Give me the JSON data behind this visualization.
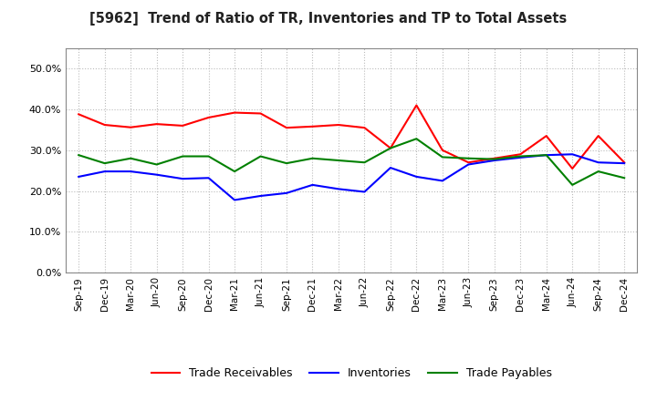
{
  "title": "[5962]  Trend of Ratio of TR, Inventories and TP to Total Assets",
  "x_labels": [
    "Sep-19",
    "Dec-19",
    "Mar-20",
    "Jun-20",
    "Sep-20",
    "Dec-20",
    "Mar-21",
    "Jun-21",
    "Sep-21",
    "Dec-21",
    "Mar-22",
    "Jun-22",
    "Sep-22",
    "Dec-22",
    "Mar-23",
    "Jun-23",
    "Sep-23",
    "Dec-23",
    "Mar-24",
    "Jun-24",
    "Sep-24",
    "Dec-24"
  ],
  "trade_receivables": [
    0.388,
    0.362,
    0.356,
    0.364,
    0.36,
    0.38,
    0.392,
    0.39,
    0.355,
    0.358,
    0.362,
    0.355,
    0.305,
    0.41,
    0.3,
    0.27,
    0.28,
    0.29,
    0.335,
    0.255,
    0.335,
    0.27
  ],
  "inventories": [
    0.235,
    0.248,
    0.248,
    0.24,
    0.23,
    0.232,
    0.178,
    0.188,
    0.195,
    0.215,
    0.205,
    0.198,
    0.257,
    0.235,
    0.225,
    0.265,
    0.275,
    0.282,
    0.288,
    0.29,
    0.27,
    0.268
  ],
  "trade_payables": [
    0.288,
    0.268,
    0.28,
    0.265,
    0.285,
    0.285,
    0.248,
    0.285,
    0.268,
    0.28,
    0.275,
    0.27,
    0.305,
    0.328,
    0.283,
    0.28,
    0.278,
    0.285,
    0.288,
    0.215,
    0.248,
    0.232
  ],
  "tr_color": "#ff0000",
  "inv_color": "#0000ff",
  "tp_color": "#008000",
  "ylim": [
    0.0,
    0.55
  ],
  "yticks": [
    0.0,
    0.1,
    0.2,
    0.3,
    0.4,
    0.5
  ],
  "bg_color": "#ffffff",
  "plot_bg_color": "#ffffff",
  "grid_color": "#bbbbbb",
  "legend_labels": [
    "Trade Receivables",
    "Inventories",
    "Trade Payables"
  ]
}
